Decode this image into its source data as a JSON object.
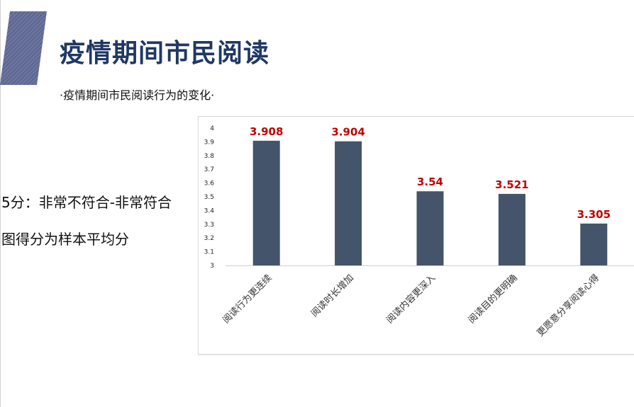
{
  "slide": {
    "title": "疫情期间市民阅读",
    "subtitle": "·疫情期间市民阅读行为的变化·",
    "note_line1": "5分：非常不符合-非常符合",
    "note_line2": "图得分为样本平均分"
  },
  "colors": {
    "bar": "#44546a",
    "value_label": "#c00000",
    "title": "#1f3864",
    "accent": "#6b7399"
  },
  "chart_data": {
    "type": "bar",
    "categories": [
      "阅读行为更连续",
      "阅读时长增加",
      "阅读内容更深入",
      "阅读目的更明确",
      "更愿意分享阅读心得"
    ],
    "values": [
      3.908,
      3.904,
      3.54,
      3.521,
      3.305
    ],
    "value_labels": [
      "3.908",
      "3.904",
      "3.54",
      "3.521",
      "3.305"
    ],
    "yticks": [
      "3",
      "3.1",
      "3.2",
      "3.3",
      "3.4",
      "3.5",
      "3.6",
      "3.7",
      "3.8",
      "3.9",
      "4"
    ],
    "ylim": [
      3,
      4
    ],
    "title": "",
    "xlabel": "",
    "ylabel": "",
    "grid": false,
    "legend": "none"
  }
}
